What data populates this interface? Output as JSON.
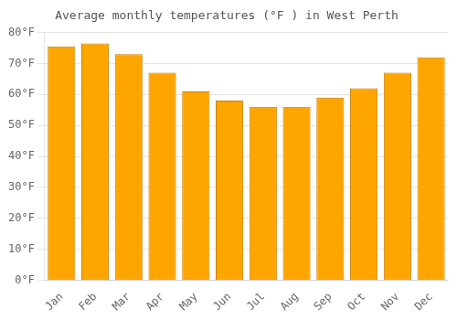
{
  "chart_data": {
    "type": "bar",
    "title": "Average monthly temperatures (°F ) in West Perth",
    "categories": [
      "Jan",
      "Feb",
      "Mar",
      "Apr",
      "May",
      "Jun",
      "Jul",
      "Aug",
      "Sep",
      "Oct",
      "Nov",
      "Dec"
    ],
    "values": [
      75.5,
      76.5,
      73.0,
      67.0,
      61.0,
      58.0,
      56.0,
      56.0,
      59.0,
      62.0,
      67.0,
      72.0
    ],
    "color": "#FFA500",
    "ylim": [
      0,
      80
    ],
    "yticks": [
      {
        "value": 0,
        "label": "0°F"
      },
      {
        "value": 10,
        "label": "10°F"
      },
      {
        "value": 20,
        "label": "20°F"
      },
      {
        "value": 30,
        "label": "30°F"
      },
      {
        "value": 40,
        "label": "40°F"
      },
      {
        "value": 50,
        "label": "50°F"
      },
      {
        "value": 60,
        "label": "60°F"
      },
      {
        "value": 70,
        "label": "70°F"
      },
      {
        "value": 80,
        "label": "80°F"
      }
    ],
    "grid": true
  }
}
